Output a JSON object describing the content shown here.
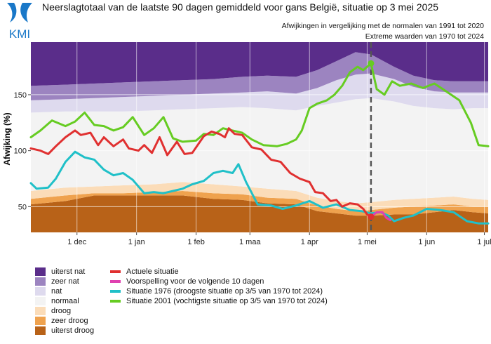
{
  "header": {
    "logo_text": "KMI",
    "title": "Neerslagtotaal van de laatste 90 dagen gemiddeld voor gans België, situatie op 3 mei 2025",
    "subtitle1": "Afwijkingen in vergelijking met de normalen van 1991 tot 2020",
    "subtitle2": "Extreme waarden van 1970 tot 2024"
  },
  "chart_data": {
    "type": "area",
    "ylabel": "Afwijking (%)",
    "x_range": [
      "2024-11-07",
      "2025-07-03"
    ],
    "ylim": [
      27,
      197
    ],
    "y_ticks": [
      50,
      100,
      150
    ],
    "x_ticks": [
      {
        "label": "1 dec",
        "date": "2024-12-01"
      },
      {
        "label": "1 jan",
        "date": "2025-01-01"
      },
      {
        "label": "1 feb",
        "date": "2025-02-01"
      },
      {
        "label": "1 maa",
        "date": "2025-03-01"
      },
      {
        "label": "1 apr",
        "date": "2025-04-01"
      },
      {
        "label": "1 mei",
        "date": "2025-05-01"
      },
      {
        "label": "1 jun",
        "date": "2025-06-01"
      },
      {
        "label": "1 jul",
        "date": "2025-07-01"
      }
    ],
    "current_date": "2025-05-03",
    "grid": true,
    "bands": {
      "x": [
        "2024-11-07",
        "2024-11-25",
        "2024-12-10",
        "2024-12-25",
        "2025-01-10",
        "2025-01-25",
        "2025-02-10",
        "2025-02-25",
        "2025-03-10",
        "2025-03-25",
        "2025-04-05",
        "2025-04-15",
        "2025-04-25",
        "2025-05-03",
        "2025-05-15",
        "2025-05-25",
        "2025-06-05",
        "2025-06-15",
        "2025-06-25",
        "2025-07-03"
      ],
      "boundaries": [
        {
          "name": "uiterst droog / zeer droog",
          "values": [
            52,
            55,
            60,
            60,
            60,
            60,
            57,
            56,
            53,
            52,
            46,
            44,
            42,
            42,
            43,
            43,
            45,
            47,
            45,
            44
          ]
        },
        {
          "name": "zeer droog / droog",
          "values": [
            57,
            60,
            62,
            62,
            63,
            64,
            62,
            61,
            58,
            57,
            51,
            48,
            46,
            47,
            49,
            50,
            51,
            52,
            50,
            50
          ]
        },
        {
          "name": "droog / normaal",
          "values": [
            64,
            67,
            68,
            69,
            70,
            72,
            70,
            68,
            66,
            64,
            58,
            55,
            53,
            54,
            56,
            57,
            58,
            59,
            57,
            56
          ]
        },
        {
          "name": "normaal / nat",
          "values": [
            134,
            135,
            135,
            135,
            136,
            137,
            138,
            139,
            138,
            136,
            140,
            143,
            146,
            147,
            144,
            140,
            138,
            137,
            138,
            138
          ]
        },
        {
          "name": "nat / zeer nat",
          "values": [
            145,
            146,
            147,
            148,
            149,
            150,
            151,
            152,
            153,
            151,
            156,
            163,
            168,
            169,
            164,
            157,
            153,
            152,
            152,
            152
          ]
        },
        {
          "name": "zeer nat / uiterst nat",
          "values": [
            158,
            159,
            160,
            161,
            162,
            163,
            164,
            166,
            167,
            166,
            172,
            180,
            188,
            186,
            175,
            167,
            163,
            162,
            162,
            162
          ]
        }
      ]
    },
    "series": [
      {
        "name": "Actuele situatie",
        "color": "#e03030",
        "x": [
          "2024-11-07",
          "2024-11-12",
          "2024-11-16",
          "2024-11-20",
          "2024-11-25",
          "2024-11-30",
          "2024-12-03",
          "2024-12-08",
          "2024-12-12",
          "2024-12-15",
          "2024-12-20",
          "2024-12-25",
          "2024-12-28",
          "2025-01-02",
          "2025-01-05",
          "2025-01-09",
          "2025-01-13",
          "2025-01-17",
          "2025-01-22",
          "2025-01-26",
          "2025-01-30",
          "2025-02-05",
          "2025-02-09",
          "2025-02-13",
          "2025-02-16",
          "2025-02-18",
          "2025-02-21",
          "2025-02-25",
          "2025-03-02",
          "2025-03-07",
          "2025-03-12",
          "2025-03-17",
          "2025-03-22",
          "2025-03-27",
          "2025-04-01",
          "2025-04-04",
          "2025-04-08",
          "2025-04-12",
          "2025-04-15",
          "2025-04-18",
          "2025-04-22",
          "2025-04-26",
          "2025-04-29",
          "2025-05-01",
          "2025-05-03"
        ],
        "y": [
          102,
          100,
          97,
          104,
          112,
          118,
          114,
          116,
          105,
          112,
          104,
          110,
          102,
          100,
          105,
          98,
          112,
          96,
          108,
          97,
          98,
          113,
          117,
          115,
          112,
          120,
          115,
          114,
          103,
          101,
          92,
          90,
          80,
          75,
          72,
          63,
          62,
          55,
          56,
          50,
          53,
          52,
          48,
          43,
          41
        ]
      },
      {
        "name": "Voorspelling voor de volgende 10 dagen",
        "color": "#e040b0",
        "x": [
          "2025-05-03",
          "2025-05-06",
          "2025-05-09",
          "2025-05-11",
          "2025-05-13"
        ],
        "y": [
          41,
          45,
          45,
          40,
          38
        ]
      },
      {
        "name": "Situatie 1976 (droogste situatie op 3/5 van 1970 tot 2024)",
        "color": "#20c0c8",
        "x": [
          "2024-11-07",
          "2024-11-10",
          "2024-11-16",
          "2024-11-20",
          "2024-11-25",
          "2024-11-30",
          "2024-12-05",
          "2024-12-10",
          "2024-12-15",
          "2024-12-20",
          "2024-12-25",
          "2024-12-30",
          "2025-01-05",
          "2025-01-10",
          "2025-01-15",
          "2025-01-20",
          "2025-01-25",
          "2025-01-30",
          "2025-02-05",
          "2025-02-10",
          "2025-02-15",
          "2025-02-20",
          "2025-02-23",
          "2025-02-27",
          "2025-03-05",
          "2025-03-12",
          "2025-03-18",
          "2025-03-25",
          "2025-04-01",
          "2025-04-08",
          "2025-04-15",
          "2025-04-22",
          "2025-04-28",
          "2025-05-03",
          "2025-05-08",
          "2025-05-12",
          "2025-05-15",
          "2025-05-20",
          "2025-05-25",
          "2025-06-01",
          "2025-06-08",
          "2025-06-15",
          "2025-06-22",
          "2025-06-28",
          "2025-07-03"
        ],
        "y": [
          71,
          66,
          67,
          75,
          90,
          99,
          94,
          92,
          83,
          78,
          80,
          74,
          62,
          63,
          62,
          64,
          66,
          70,
          73,
          80,
          82,
          80,
          88,
          72,
          52,
          51,
          48,
          51,
          55,
          49,
          52,
          47,
          46,
          44,
          45,
          42,
          37,
          40,
          42,
          48,
          47,
          45,
          37,
          35,
          35
        ]
      },
      {
        "name": "Situatie 2001 (vochtigste situatie op 3/5 van 1970 tot 2024)",
        "color": "#66cc22",
        "x": [
          "2024-11-07",
          "2024-11-12",
          "2024-11-18",
          "2024-11-25",
          "2024-11-30",
          "2024-12-05",
          "2024-12-10",
          "2024-12-15",
          "2024-12-20",
          "2024-12-25",
          "2024-12-30",
          "2025-01-05",
          "2025-01-10",
          "2025-01-15",
          "2025-01-20",
          "2025-01-25",
          "2025-02-01",
          "2025-02-05",
          "2025-02-10",
          "2025-02-15",
          "2025-02-20",
          "2025-02-25",
          "2025-03-02",
          "2025-03-08",
          "2025-03-15",
          "2025-03-20",
          "2025-03-25",
          "2025-03-28",
          "2025-04-01",
          "2025-04-05",
          "2025-04-10",
          "2025-04-14",
          "2025-04-18",
          "2025-04-22",
          "2025-04-26",
          "2025-04-29",
          "2025-05-03",
          "2025-05-06",
          "2025-05-10",
          "2025-05-14",
          "2025-05-18",
          "2025-05-24",
          "2025-05-30",
          "2025-06-05",
          "2025-06-12",
          "2025-06-18",
          "2025-06-24",
          "2025-06-28",
          "2025-07-03"
        ],
        "y": [
          112,
          118,
          127,
          122,
          126,
          134,
          123,
          122,
          118,
          121,
          130,
          114,
          120,
          130,
          111,
          108,
          109,
          115,
          114,
          120,
          118,
          116,
          110,
          105,
          104,
          106,
          110,
          118,
          138,
          142,
          145,
          150,
          158,
          170,
          175,
          172,
          178,
          155,
          150,
          162,
          158,
          160,
          156,
          160,
          152,
          145,
          125,
          105,
          104
        ]
      }
    ]
  },
  "legend": {
    "bands": [
      {
        "label": "uiterst nat",
        "color": "#5a2d8a"
      },
      {
        "label": "zeer nat",
        "color": "#9c84c0"
      },
      {
        "label": "nat",
        "color": "#dedaee"
      },
      {
        "label": "normaal",
        "color": "#f3f3f3"
      },
      {
        "label": "droog",
        "color": "#fbdcb8"
      },
      {
        "label": "zeer droog",
        "color": "#efa24e"
      },
      {
        "label": "uiterst droog",
        "color": "#b86218"
      }
    ],
    "lines": [
      {
        "label": "Actuele situatie",
        "color": "#e03030"
      },
      {
        "label": "Voorspelling voor de volgende 10 dagen",
        "color": "#e040b0"
      },
      {
        "label": "Situatie 1976 (droogste situatie op 3/5 van 1970 tot 2024)",
        "color": "#20c0c8"
      },
      {
        "label": "Situatie 2001 (vochtigste situatie op 3/5 van 1970 tot 2024)",
        "color": "#66cc22"
      }
    ]
  }
}
